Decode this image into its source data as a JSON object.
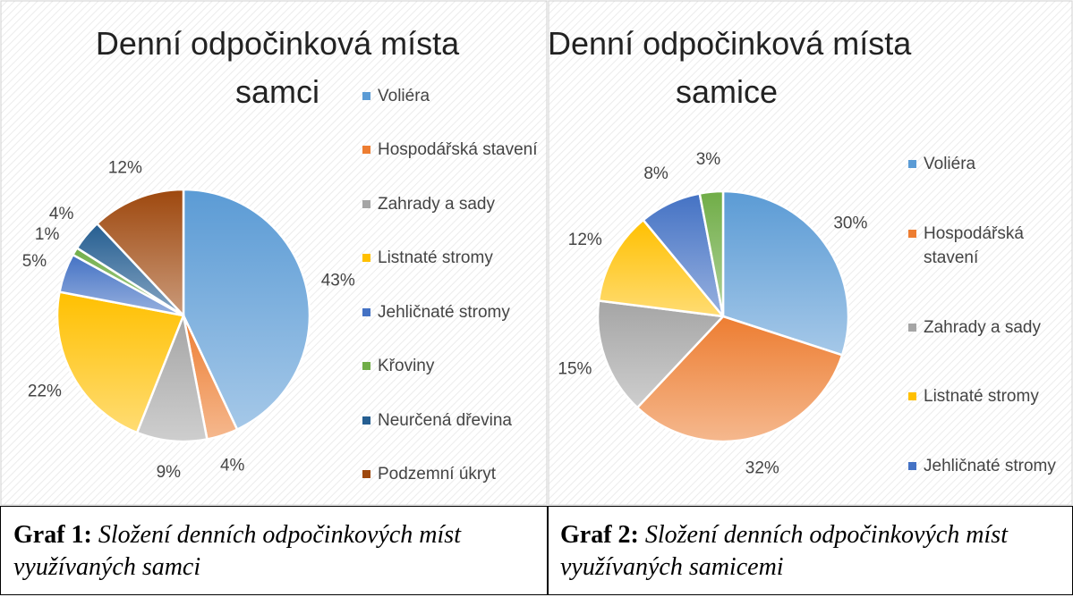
{
  "chart_data": [
    {
      "type": "pie",
      "title": [
        "Denní odpočinková místa",
        "samci"
      ],
      "categories": [
        "Voliéra",
        "Hospodářská stavení",
        "Zahrady a sady",
        "Listnaté stromy",
        "Jehličnaté stromy",
        "Křoviny",
        "Neurčená dřevina",
        "Podzemní úkryt"
      ],
      "values": [
        43,
        4,
        9,
        22,
        5,
        1,
        4,
        12
      ],
      "value_labels": [
        "43%",
        "4%",
        "9%",
        "22%",
        "5%",
        "1%",
        "4%",
        "12%"
      ],
      "colors": [
        "#5b9bd5",
        "#ed7d31",
        "#a5a5a5",
        "#ffc000",
        "#4472c4",
        "#70ad47",
        "#255e91",
        "#9e480e"
      ],
      "legend": "right",
      "caption": {
        "label": "Graf 1:",
        "text": "Složení denních odpočinkových míst využívaných samci"
      }
    },
    {
      "type": "pie",
      "title": [
        "Denní odpočinková místa",
        "samice"
      ],
      "categories": [
        "Voliéra",
        "Hospodářská stavení",
        "Zahrady a sady",
        "Listnaté stromy",
        "Jehličnaté stromy",
        null
      ],
      "values": [
        30,
        32,
        15,
        12,
        8,
        3
      ],
      "value_labels": [
        "30%",
        "32%",
        "15%",
        "12%",
        "8%",
        "3%"
      ],
      "colors": [
        "#5b9bd5",
        "#ed7d31",
        "#a5a5a5",
        "#ffc000",
        "#4472c4",
        "#70ad47"
      ],
      "legend": "right",
      "caption": {
        "label": "Graf 2:",
        "text": "Složení denních odpočinkových míst využívaných samicemi"
      }
    }
  ]
}
